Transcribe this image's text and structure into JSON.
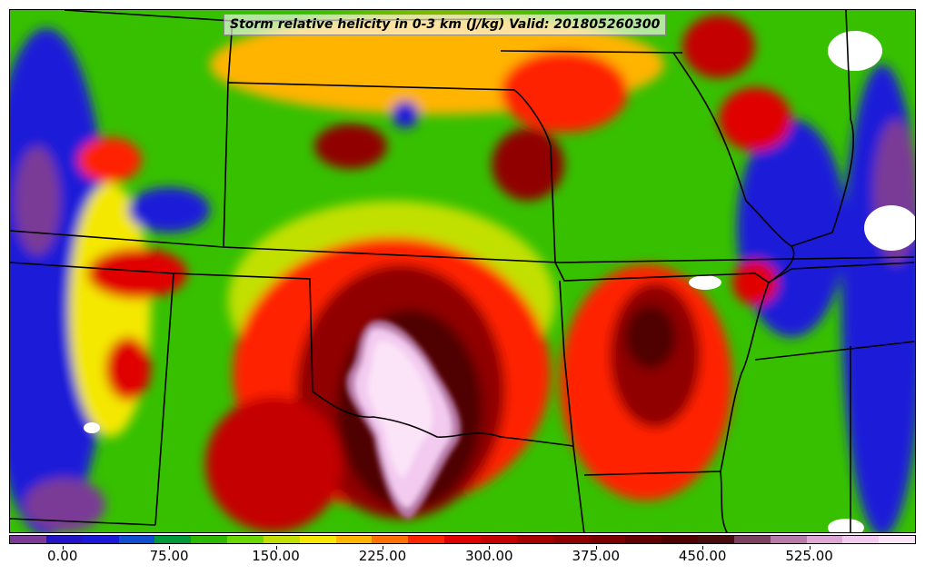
{
  "title": "Storm relative helicity in 0-3 km (J/kg) Valid: 201805260300",
  "colorbar": {
    "colors": [
      "#7a3a96",
      "#2414c8",
      "#1a1ad8",
      "#0f4fd0",
      "#009a3c",
      "#2fb800",
      "#69d800",
      "#c2e000",
      "#f4e800",
      "#ffb400",
      "#ff7000",
      "#ff2400",
      "#e00000",
      "#c40000",
      "#a80000",
      "#900000",
      "#7a0000",
      "#640000",
      "#500000",
      "#480c0c",
      "#7c4060",
      "#b87aa8",
      "#dca6d6",
      "#f3cbf0",
      "#fbe3f8"
    ],
    "tick_labels": [
      "0.00",
      "75.00",
      "150.00",
      "225.00",
      "300.00",
      "375.00",
      "450.00",
      "525.00"
    ],
    "tick_values": [
      0,
      75,
      150,
      225,
      300,
      375,
      450,
      525
    ],
    "range": [
      -37.5,
      600
    ]
  },
  "colors": {
    "base_green": "#36c000",
    "blue": "#1a1ad8",
    "purple": "#7a3a96",
    "yellow": "#f4e800",
    "red": "#ff2400",
    "dark_red": "#6a0000",
    "pink": "#f3cbf0",
    "white": "#ffffff"
  }
}
